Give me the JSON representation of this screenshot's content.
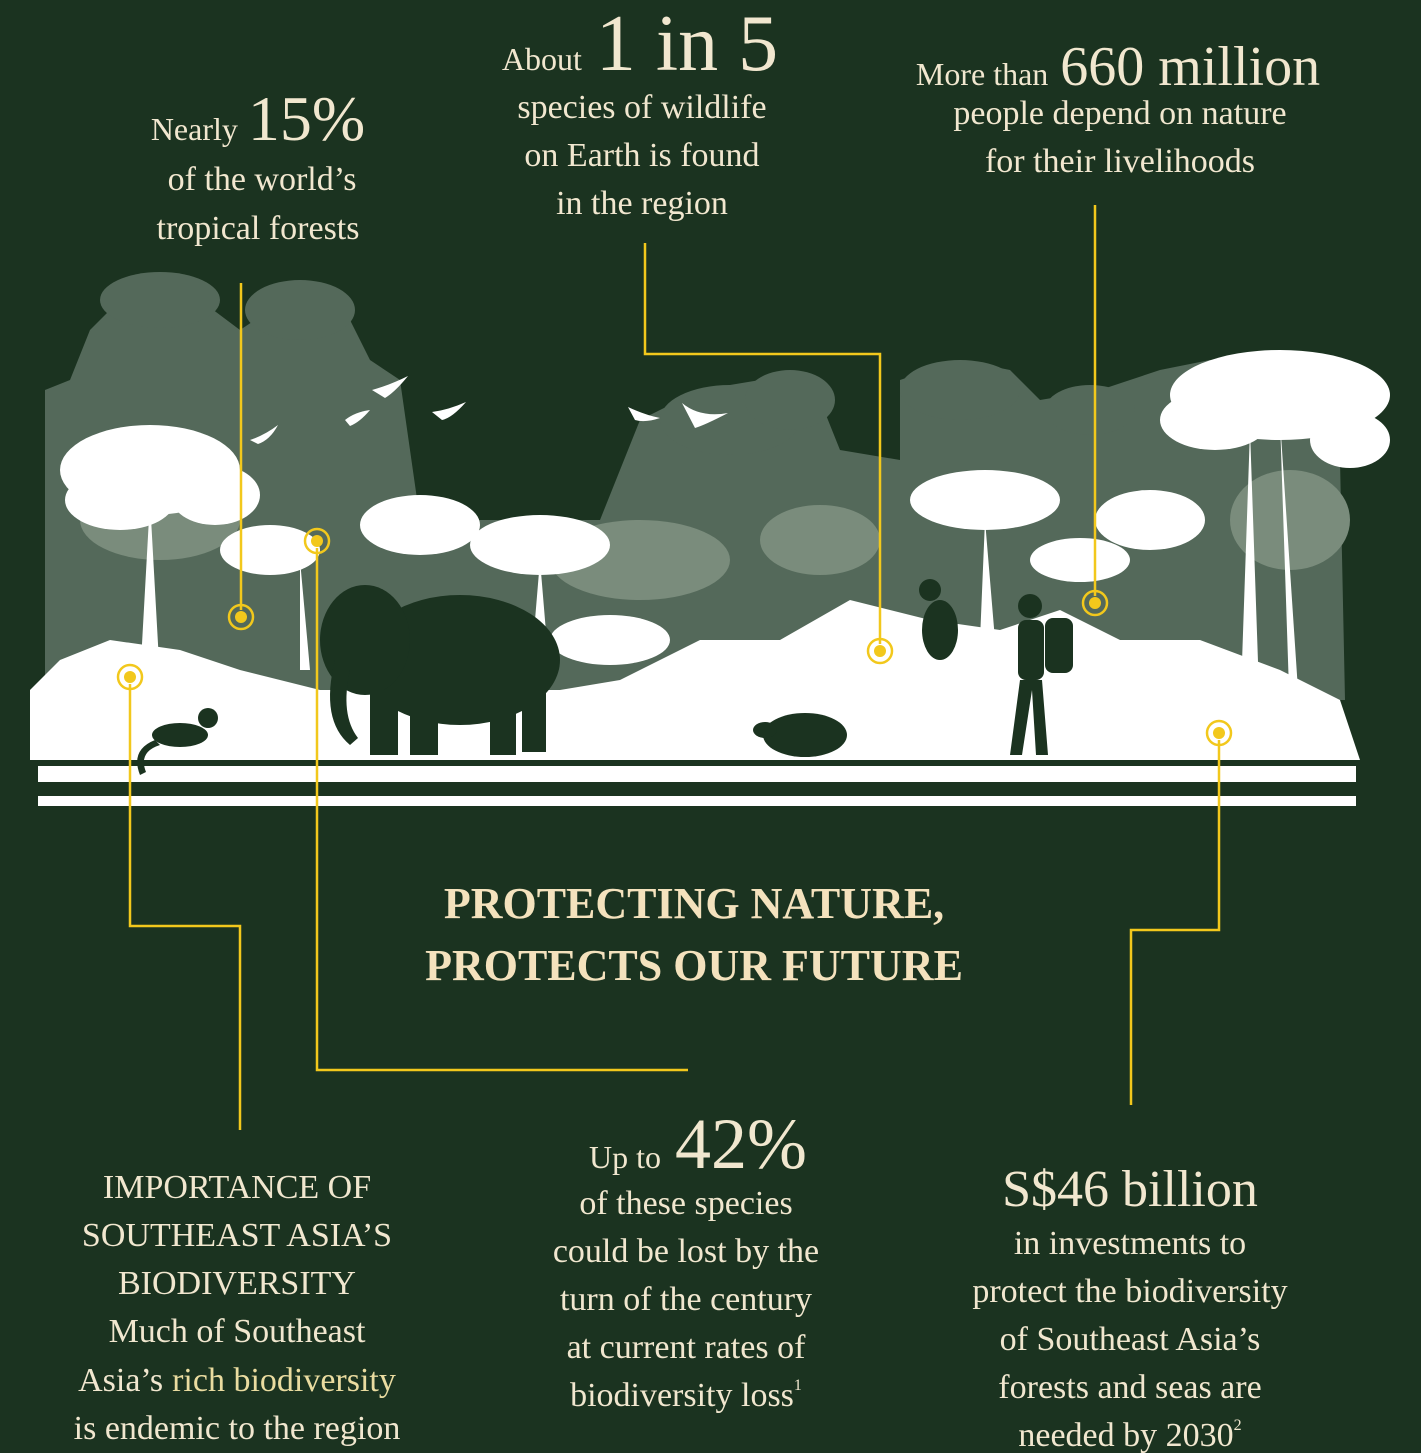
{
  "stats": [
    {
      "prefix": "Nearly",
      "highlight": "15%",
      "lines": [
        "of the world’s",
        "tropical forests"
      ]
    },
    {
      "prefix": "About",
      "highlight": "1 in 5",
      "lines": [
        "species of wildlife",
        "on Earth is found",
        "in the region"
      ]
    },
    {
      "prefix": "More than",
      "highlight": "660 million",
      "lines": [
        "people depend on nature",
        "for their livelihoods"
      ]
    }
  ],
  "headline": [
    "PROTECTING NATURE,",
    "PROTECTS OUR FUTURE"
  ],
  "importance": {
    "title_lines": [
      "IMPORTANCE OF",
      "SOUTHEAST ASIA’S",
      "BIODIVERSITY"
    ],
    "line1": "Much of Southeast",
    "line2_prefix": "Asia’s",
    "line2_highlight": "rich biodiversity",
    "line3": "is endemic to the region"
  },
  "loss": {
    "prefix": "Up to",
    "highlight": "42%",
    "lines": [
      "of these species",
      "could be lost by the",
      "turn of the century",
      "at current rates of",
      "biodiversity loss"
    ],
    "footnote": "1"
  },
  "investment": {
    "highlight": "S$46 billion",
    "lines": [
      "in investments to",
      "protect the biodiversity",
      "of Southeast Asia’s",
      "forests and seas are",
      "needed by 2030"
    ],
    "footnote": "2"
  }
}
